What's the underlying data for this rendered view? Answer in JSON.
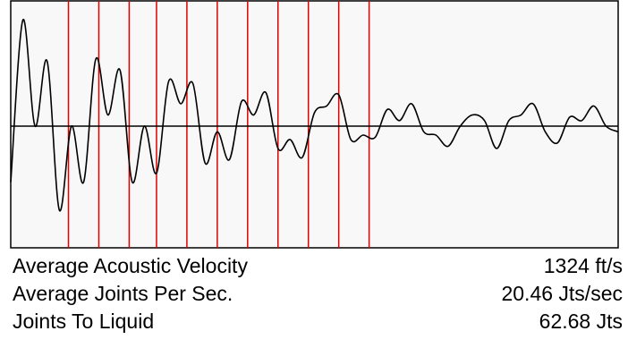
{
  "chart_data": {
    "type": "line",
    "title": "",
    "xlabel": "",
    "ylabel": "",
    "xlim": [
      0,
      100
    ],
    "ylim": [
      -1,
      1
    ],
    "grid": false,
    "colors": {
      "plot_background": "#f8f8f8",
      "frame": "#000000",
      "waveform": "#000000",
      "baseline": "#000000",
      "joint_marker": "#e00000"
    },
    "baseline_y": 0,
    "series": [
      {
        "x": [
          0,
          2,
          4,
          6,
          8,
          10,
          12,
          14,
          16,
          18,
          20,
          22,
          24,
          26,
          28,
          30,
          32,
          34,
          36,
          38,
          40,
          42,
          44,
          46,
          48,
          50,
          52,
          54,
          56,
          58,
          60,
          62,
          64,
          66,
          68,
          70,
          72,
          74,
          76,
          78,
          80,
          82,
          84,
          86,
          88,
          90,
          92,
          94,
          96,
          98,
          100
        ],
        "y": [
          -0.5,
          0.95,
          0.0,
          0.58,
          -0.75,
          0.0,
          -0.5,
          0.6,
          0.1,
          0.5,
          -0.5,
          0.0,
          -0.42,
          0.4,
          0.2,
          0.38,
          -0.33,
          -0.05,
          -0.3,
          0.22,
          0.1,
          0.3,
          -0.2,
          -0.12,
          -0.28,
          0.12,
          0.18,
          0.28,
          -0.12,
          -0.08,
          -0.1,
          0.15,
          0.05,
          0.2,
          -0.05,
          -0.08,
          -0.18,
          0.0,
          0.1,
          0.05,
          -0.2,
          0.05,
          0.1,
          0.2,
          -0.05,
          -0.15,
          0.08,
          0.05,
          0.18,
          0.0,
          -0.05
        ]
      }
    ],
    "joint_markers_x": [
      9.5,
      14.5,
      19.5,
      24.0,
      29.0,
      34.0,
      39.0,
      44.0,
      49.0,
      54.0,
      59.0
    ]
  },
  "readouts": [
    {
      "label": "Average Acoustic Velocity",
      "value": "1324 ft/s"
    },
    {
      "label": "Average Joints Per Sec.",
      "value": "20.46 Jts/sec"
    },
    {
      "label": "Joints To Liquid",
      "value": "62.68 Jts"
    }
  ]
}
